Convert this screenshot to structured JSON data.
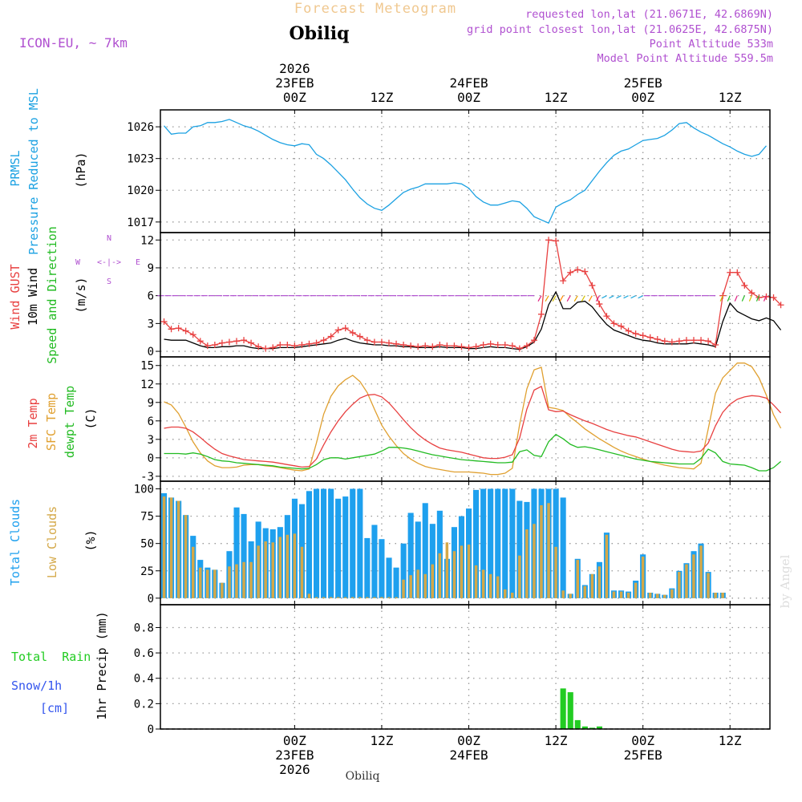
{
  "header": {
    "title": "Forecast Meteogram",
    "station": "Obiliq",
    "model": "ICON-EU, ~ 7km",
    "requested": "requested lon,lat (21.0671E, 42.6869N)",
    "gridpoint": "grid point closest lon,lat (21.0625E, 42.6875N)",
    "altitude": "Point Altitude 533m",
    "model_altitude": "Model Point Altitude 559.5m",
    "watermark": "by Angel",
    "footer_station": "Obiliq"
  },
  "time_axis": {
    "top_labels": [
      {
        "l1": "2026",
        "l2": "23FEB",
        "l3": "00Z",
        "i": 18
      },
      {
        "l1": "",
        "l2": "",
        "l3": "12Z",
        "i": 30
      },
      {
        "l1": "",
        "l2": "24FEB",
        "l3": "00Z",
        "i": 42
      },
      {
        "l1": "",
        "l2": "",
        "l3": "12Z",
        "i": 54
      },
      {
        "l1": "",
        "l2": "25FEB",
        "l3": "00Z",
        "i": 66
      },
      {
        "l1": "",
        "l2": "",
        "l3": "12Z",
        "i": 78
      }
    ],
    "bottom_labels": [
      {
        "l1": "00Z",
        "l2": "23FEB",
        "l3": "2026",
        "i": 18
      },
      {
        "l1": "12Z",
        "l2": "",
        "l3": "",
        "i": 30
      },
      {
        "l1": "00Z",
        "l2": "24FEB",
        "l3": "",
        "i": 42
      },
      {
        "l1": "12Z",
        "l2": "",
        "l3": "",
        "i": 54
      },
      {
        "l1": "00Z",
        "l2": "25FEB",
        "l3": "",
        "i": 66
      },
      {
        "l1": "12Z",
        "l2": "",
        "l3": "",
        "i": 78
      }
    ]
  },
  "panels": {
    "pressure": {
      "title1": "PRMSL",
      "title2": "Pressure Reduced to MSL",
      "unit": "(hPa)"
    },
    "wind": {
      "gust": "Wind GUST",
      "wind10": "10m Wind",
      "speed_dir": "Speed and Direction",
      "unit": "(m/s)",
      "compass_n": "N",
      "compass_s": "S",
      "compass_w": "W",
      "compass_e": "E",
      "compass_arrows": "<-|->"
    },
    "temp": {
      "t2m": "2m Temp",
      "sfc": "SFC Temp",
      "dewpt": "dewpt Temp",
      "unit": "(C)"
    },
    "clouds": {
      "total": "Total Clouds",
      "low": "Low Clouds",
      "unit": "(%)"
    },
    "precip": {
      "rain": "Total  Rain",
      "snow": "Snow/1h",
      "snow_unit": "[cm]",
      "unit": "1hr Precip (mm)"
    }
  },
  "colors": {
    "pressure": "#1ba1e2",
    "gust": "#e84040",
    "wind": "#000000",
    "t2m": "#e84040",
    "sfc": "#e0a030",
    "dewpt": "#22bb22",
    "total_clouds": "#1ea0ee",
    "low_clouds": "#d4a848",
    "rain": "#22cc22",
    "snow": "#3355ee",
    "purple": "#b050d0"
  },
  "chart_data": [
    {
      "type": "line",
      "title": "PRMSL Pressure Reduced to MSL",
      "ylabel": "(hPa)",
      "ylim": [
        1016,
        1027.6
      ],
      "yticks": [
        1017,
        1020,
        1023,
        1026
      ],
      "x_index": "hour offset from 2026-02-22 06Z (0..76)",
      "series": [
        {
          "name": "PRMSL",
          "values": [
            1026.1,
            1025.3,
            1025.4,
            1025.4,
            1026.0,
            1026.1,
            1026.4,
            1026.4,
            1026.5,
            1026.7,
            1026.4,
            1026.1,
            1025.9,
            1025.6,
            1025.2,
            1024.8,
            1024.5,
            1024.3,
            1024.2,
            1024.4,
            1024.3,
            1023.4,
            1023.0,
            1022.4,
            1021.7,
            1021.0,
            1020.1,
            1019.3,
            1018.7,
            1018.3,
            1018.1,
            1018.6,
            1019.2,
            1019.8,
            1020.1,
            1020.3,
            1020.6,
            1020.6,
            1020.6,
            1020.6,
            1020.7,
            1020.6,
            1020.2,
            1019.4,
            1018.9,
            1018.6,
            1018.6,
            1018.8,
            1019.0,
            1018.9,
            1018.3,
            1017.5,
            1017.2,
            1016.9,
            1018.4,
            1018.8,
            1019.1,
            1019.6,
            1020.0,
            1020.9,
            1021.8,
            1022.6,
            1023.3,
            1023.7,
            1023.9,
            1024.3,
            1024.7,
            1024.8,
            1024.9,
            1025.2,
            1025.7,
            1026.3,
            1026.4,
            1025.9,
            1025.5,
            1025.2,
            1024.8,
            1024.4,
            1024.1,
            1023.7,
            1023.4,
            1023.2,
            1023.4,
            1024.2
          ]
        }
      ]
    },
    {
      "type": "line",
      "title": "Wind GUST / 10m Wind",
      "ylabel": "(m/s)",
      "ylim": [
        -0.6,
        12.8
      ],
      "yticks": [
        0,
        3,
        6,
        9,
        12
      ],
      "series": [
        {
          "name": "Wind GUST",
          "values": [
            3.2,
            2.4,
            2.5,
            2.2,
            1.8,
            1.1,
            0.6,
            0.7,
            0.9,
            1.0,
            1.1,
            1.2,
            0.9,
            0.5,
            0.3,
            0.4,
            0.7,
            0.7,
            0.6,
            0.7,
            0.8,
            0.9,
            1.2,
            1.6,
            2.3,
            2.5,
            2.0,
            1.6,
            1.2,
            1.0,
            1.0,
            0.9,
            0.8,
            0.7,
            0.6,
            0.5,
            0.6,
            0.5,
            0.7,
            0.6,
            0.6,
            0.5,
            0.4,
            0.5,
            0.7,
            0.8,
            0.7,
            0.7,
            0.6,
            0.3,
            0.6,
            1.2,
            4.0,
            12.0,
            11.9,
            7.6,
            8.5,
            8.8,
            8.6,
            7.1,
            5.1,
            3.8,
            3.0,
            2.7,
            2.2,
            1.9,
            1.7,
            1.5,
            1.3,
            1.1,
            1.0,
            1.1,
            1.2,
            1.2,
            1.2,
            1.1,
            0.7,
            6.0,
            8.5,
            8.5,
            7.1,
            6.3,
            5.8,
            5.9,
            5.8,
            5.0
          ]
        },
        {
          "name": "10m Wind",
          "values": [
            1.3,
            1.2,
            1.2,
            1.2,
            0.9,
            0.6,
            0.4,
            0.4,
            0.5,
            0.5,
            0.6,
            0.6,
            0.4,
            0.3,
            0.3,
            0.3,
            0.4,
            0.4,
            0.4,
            0.5,
            0.6,
            0.7,
            0.8,
            0.9,
            1.2,
            1.4,
            1.1,
            0.9,
            0.8,
            0.7,
            0.7,
            0.6,
            0.6,
            0.5,
            0.5,
            0.4,
            0.4,
            0.4,
            0.5,
            0.4,
            0.4,
            0.4,
            0.3,
            0.3,
            0.4,
            0.5,
            0.4,
            0.4,
            0.3,
            0.2,
            0.5,
            1.0,
            2.4,
            5.0,
            6.4,
            4.6,
            4.6,
            5.3,
            5.4,
            4.8,
            3.8,
            2.9,
            2.3,
            2.0,
            1.7,
            1.4,
            1.2,
            1.1,
            0.9,
            0.8,
            0.8,
            0.8,
            0.8,
            0.9,
            0.8,
            0.7,
            0.5,
            3.2,
            5.2,
            4.3,
            3.9,
            3.5,
            3.3,
            3.6,
            3.3,
            2.3
          ]
        }
      ]
    },
    {
      "type": "line",
      "title": "2m Temp / SFC Temp / dewpt Temp",
      "ylabel": "(C)",
      "ylim": [
        -3.8,
        16.4
      ],
      "yticks": [
        -3,
        0,
        3,
        6,
        9,
        12,
        15
      ],
      "series": [
        {
          "name": "2m Temp",
          "values": [
            4.8,
            5.0,
            5.0,
            4.8,
            4.2,
            3.3,
            2.3,
            1.4,
            0.7,
            0.3,
            0.0,
            -0.3,
            -0.4,
            -0.5,
            -0.6,
            -0.7,
            -0.9,
            -1.1,
            -1.3,
            -1.5,
            -1.4,
            -0.2,
            2.1,
            4.2,
            6.0,
            7.5,
            8.7,
            9.7,
            10.2,
            10.3,
            9.9,
            8.9,
            7.6,
            6.2,
            4.9,
            3.8,
            2.9,
            2.2,
            1.6,
            1.3,
            1.1,
            0.9,
            0.6,
            0.3,
            0.0,
            -0.1,
            -0.1,
            0.1,
            0.5,
            3.2,
            7.9,
            11.0,
            11.6,
            7.8,
            7.5,
            7.6,
            7.0,
            6.5,
            6.0,
            5.6,
            5.1,
            4.6,
            4.2,
            3.9,
            3.6,
            3.4,
            3.0,
            2.6,
            2.2,
            1.8,
            1.4,
            1.1,
            1.0,
            0.9,
            1.1,
            2.4,
            5.2,
            7.4,
            8.7,
            9.5,
            9.9,
            10.1,
            10.0,
            9.7,
            8.6,
            7.3
          ]
        },
        {
          "name": "SFC Temp",
          "values": [
            9.1,
            8.6,
            7.2,
            5.0,
            2.6,
            0.8,
            -0.5,
            -1.3,
            -1.6,
            -1.6,
            -1.5,
            -1.2,
            -1.1,
            -1.1,
            -1.3,
            -1.4,
            -1.6,
            -1.8,
            -2.0,
            -2.1,
            -1.8,
            2.4,
            7.1,
            10.0,
            11.7,
            12.7,
            13.4,
            12.4,
            10.6,
            7.9,
            5.3,
            3.5,
            2.0,
            0.7,
            -0.2,
            -0.9,
            -1.4,
            -1.7,
            -1.9,
            -2.1,
            -2.3,
            -2.3,
            -2.3,
            -2.4,
            -2.5,
            -2.7,
            -2.7,
            -2.5,
            -1.7,
            5.4,
            11.2,
            14.3,
            14.7,
            8.2,
            8.0,
            7.7,
            6.6,
            5.7,
            4.7,
            3.9,
            3.1,
            2.4,
            1.7,
            1.1,
            0.6,
            0.2,
            -0.2,
            -0.6,
            -0.9,
            -1.2,
            -1.4,
            -1.6,
            -1.7,
            -1.8,
            -0.9,
            4.7,
            10.5,
            13.0,
            14.2,
            15.4,
            15.4,
            14.8,
            13.0,
            10.2,
            7.0,
            4.8
          ]
        },
        {
          "name": "dewpt Temp",
          "values": [
            0.7,
            0.7,
            0.7,
            0.6,
            0.8,
            0.6,
            0.2,
            -0.3,
            -0.5,
            -0.6,
            -0.8,
            -0.9,
            -1.0,
            -1.1,
            -1.2,
            -1.3,
            -1.5,
            -1.6,
            -1.7,
            -1.8,
            -1.7,
            -1.1,
            -0.3,
            0.0,
            0.0,
            -0.2,
            0.0,
            0.2,
            0.4,
            0.6,
            1.1,
            1.7,
            1.7,
            1.6,
            1.4,
            1.1,
            0.8,
            0.5,
            0.3,
            0.1,
            -0.1,
            -0.3,
            -0.4,
            -0.5,
            -0.6,
            -0.7,
            -0.8,
            -0.8,
            -0.7,
            1.0,
            1.3,
            0.4,
            0.2,
            2.6,
            3.8,
            3.1,
            2.2,
            1.7,
            1.8,
            1.6,
            1.3,
            1.0,
            0.7,
            0.4,
            0.1,
            -0.2,
            -0.4,
            -0.6,
            -0.7,
            -0.8,
            -0.9,
            -1.0,
            -1.0,
            -1.0,
            -0.1,
            1.4,
            0.8,
            -0.6,
            -1.0,
            -1.1,
            -1.2,
            -1.6,
            -2.1,
            -2.1,
            -1.6,
            -0.6
          ]
        }
      ]
    },
    {
      "type": "bar",
      "title": "Total Clouds / Low Clouds",
      "ylabel": "(%)",
      "ylim": [
        -6,
        107
      ],
      "yticks": [
        0,
        25,
        50,
        75,
        100
      ],
      "series": [
        {
          "name": "Total Clouds",
          "values": [
            96,
            92,
            89,
            76,
            57,
            35,
            28,
            26,
            14,
            43,
            83,
            77,
            52,
            70,
            64,
            63,
            65,
            76,
            91,
            86,
            98,
            100,
            100,
            100,
            91,
            93,
            100,
            100,
            55,
            67,
            54,
            37,
            28,
            50,
            78,
            70,
            87,
            68,
            80,
            36,
            65,
            75,
            82,
            99,
            100,
            100,
            100,
            100,
            100,
            89,
            88,
            100,
            100,
            100,
            100,
            92,
            4,
            36,
            12,
            22,
            33,
            60,
            7,
            7,
            6,
            16,
            40,
            5,
            4,
            3,
            9,
            25,
            32,
            43,
            50,
            24,
            5,
            5
          ]
        },
        {
          "name": "Low Clouds",
          "values": [
            93,
            92,
            89,
            76,
            47,
            28,
            26,
            26,
            14,
            29,
            31,
            33,
            33,
            48,
            52,
            51,
            56,
            58,
            59,
            47,
            4,
            1,
            1,
            1,
            1,
            1,
            1,
            1,
            1,
            1,
            1,
            1,
            1,
            17,
            21,
            26,
            22,
            31,
            41,
            51,
            43,
            48,
            49,
            30,
            26,
            22,
            20,
            8,
            5,
            39,
            63,
            68,
            85,
            87,
            47,
            7,
            4,
            35,
            11,
            22,
            29,
            58,
            6,
            6,
            5,
            14,
            38,
            5,
            4,
            3,
            8,
            24,
            31,
            40,
            48,
            23,
            5,
            5
          ]
        }
      ]
    },
    {
      "type": "bar",
      "title": "1hr Precip",
      "ylabel": "1hr Precip (mm)",
      "ylim": [
        0,
        0.98
      ],
      "yticks": [
        0,
        0.2,
        0.4,
        0.6,
        0.8
      ],
      "series": [
        {
          "name": "Total Rain",
          "values": [
            0,
            0,
            0,
            0,
            0,
            0,
            0,
            0,
            0,
            0,
            0,
            0,
            0,
            0,
            0,
            0,
            0,
            0,
            0,
            0,
            0,
            0,
            0,
            0,
            0,
            0,
            0,
            0,
            0,
            0,
            0,
            0,
            0,
            0,
            0,
            0,
            0,
            0,
            0,
            0,
            0,
            0,
            0,
            0,
            0,
            0,
            0,
            0,
            0,
            0,
            0,
            0,
            0,
            0,
            0,
            0.32,
            0.29,
            0.07,
            0.02,
            0.01,
            0.02,
            0,
            0,
            0,
            0,
            0,
            0,
            0,
            0,
            0,
            0,
            0,
            0,
            0,
            0,
            0,
            0,
            0
          ]
        },
        {
          "name": "Snow/1h",
          "values": []
        }
      ]
    }
  ]
}
